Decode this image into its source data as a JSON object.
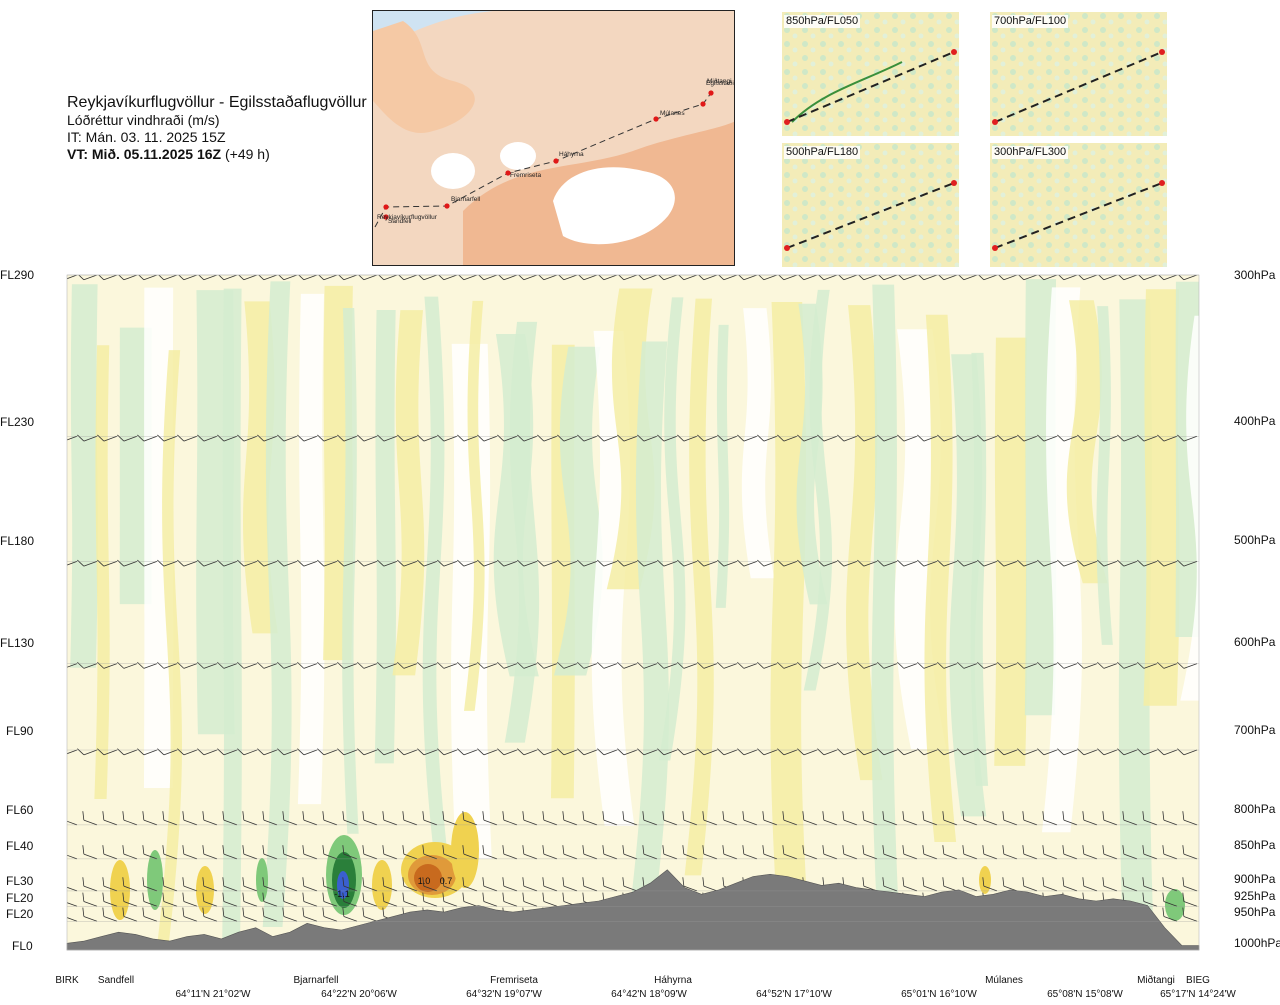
{
  "header": {
    "route": "Reykjavíkurflugvöllur - Egilsstaðaflugvöllur",
    "subtitle": "Lóðréttur vindhraði (m/s)",
    "issue_time": "IT: Mán. 03. 11. 2025 15Z",
    "valid_time_bold": "VT: Mið. 05.11.2025 16Z",
    "valid_time_offset": " (+49 h)"
  },
  "route_map": {
    "points": [
      "Reykjavíkurflugvöllur",
      "Sandfell",
      "Bjarnarfell",
      "Fremriseta",
      "Háhyrna",
      "Múlanes",
      "Miðtangi",
      "Egilsstaðir"
    ]
  },
  "level_panels": [
    {
      "label": "850hPa/FL050"
    },
    {
      "label": "700hPa/FL100"
    },
    {
      "label": "500hPa/FL180"
    },
    {
      "label": "300hPa/FL300"
    }
  ],
  "chart_data": {
    "type": "heatmap",
    "title": "Lóðréttur vindhraði (m/s)",
    "left_axis_levels": [
      "FL290",
      "FL230",
      "FL180",
      "FL130",
      "FL90",
      "FL60",
      "FL40",
      "FL30",
      "FL20",
      "FL20",
      "FL0"
    ],
    "right_axis_levels": [
      "300hPa",
      "400hPa",
      "500hPa",
      "600hPa",
      "700hPa",
      "800hPa",
      "850hPa",
      "900hPa",
      "925hPa",
      "950hPa",
      "1000hPa"
    ],
    "pressure_hpa": [
      300,
      400,
      500,
      600,
      700,
      800,
      850,
      900,
      925,
      950,
      1000
    ],
    "waypoints": [
      "BIRK",
      "Sandfell",
      "Bjarnarfell",
      "Fremriseta",
      "Háhyrna",
      "Múlanes",
      "Miðtangi",
      "BIEG"
    ],
    "coordinates": [
      "64°11'N 21°02'W",
      "64°22'N 20°06'W",
      "64°32'N 19°07'W",
      "64°42'N 18°09'W",
      "64°52'N 17°10'W",
      "65°01'N 16°10'W",
      "65°08'N 15°08'W",
      "65°17'N 14°24'W"
    ],
    "annotations": [
      "-1.1",
      "1.0",
      "0.7"
    ],
    "terrain_profile": [
      0.03,
      0.04,
      0.06,
      0.08,
      0.07,
      0.05,
      0.04,
      0.06,
      0.07,
      0.05,
      0.08,
      0.1,
      0.06,
      0.08,
      0.12,
      0.1,
      0.09,
      0.11,
      0.13,
      0.15,
      0.17,
      0.18,
      0.17,
      0.19,
      0.2,
      0.18,
      0.17,
      0.18,
      0.19,
      0.2,
      0.21,
      0.22,
      0.24,
      0.26,
      0.3,
      0.36,
      0.28,
      0.25,
      0.27,
      0.3,
      0.33,
      0.34,
      0.33,
      0.31,
      0.29,
      0.3,
      0.28,
      0.27,
      0.26,
      0.25,
      0.24,
      0.26,
      0.27,
      0.24,
      0.25,
      0.27,
      0.26,
      0.24,
      0.25,
      0.23,
      0.22,
      0.23,
      0.22,
      0.2,
      0.1,
      0.02,
      0.02
    ],
    "colors": {
      "terrain": "#7a7a7a",
      "pos_weak": "#f5eda3",
      "pos_mod": "#f0d250",
      "pos_strong": "#c86a1e",
      "neg_weak": "#d4ecd0",
      "neg_mod": "#7fc97a",
      "neg_strong": "#2a7f3a",
      "neg_core": "#3a5fd0"
    }
  }
}
